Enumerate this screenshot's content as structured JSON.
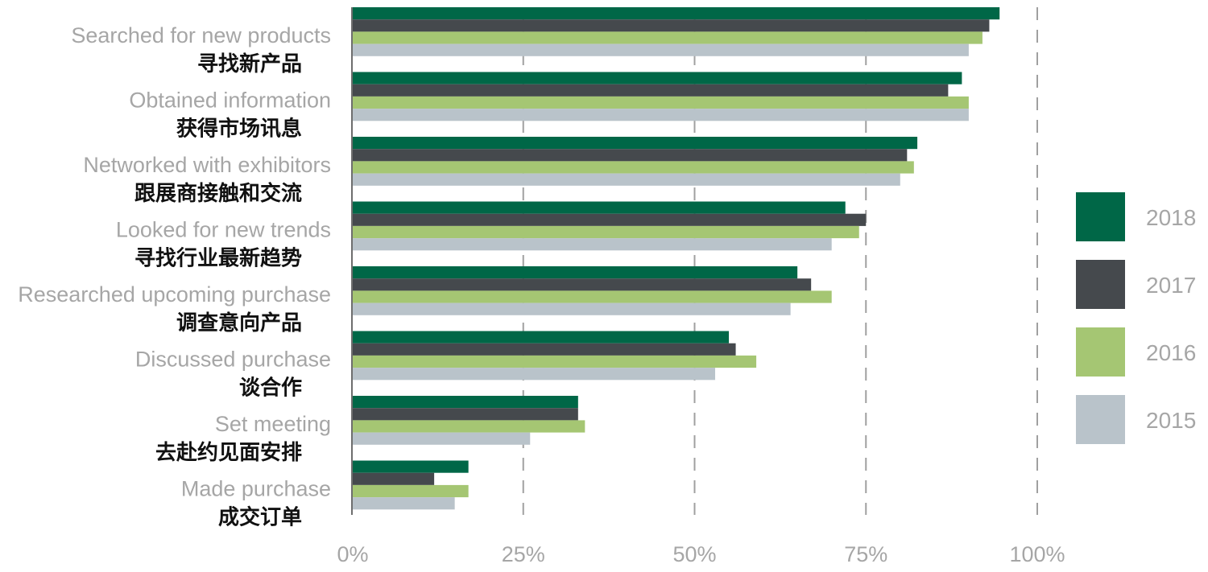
{
  "chart_data": {
    "type": "bar",
    "orientation": "horizontal",
    "categories": [
      {
        "en": "Searched for new products",
        "zh": "寻找新产品"
      },
      {
        "en": "Obtained information",
        "zh": "获得市场讯息"
      },
      {
        "en": "Networked with exhibitors",
        "zh": "跟展商接触和交流"
      },
      {
        "en": "Looked for new trends",
        "zh": "寻找行业最新趋势"
      },
      {
        "en": "Researched upcoming purchase",
        "zh": "调查意向产品"
      },
      {
        "en": "Discussed purchase",
        "zh": "谈合作"
      },
      {
        "en": "Set meeting",
        "zh": "去赴约见面安排"
      },
      {
        "en": "Made purchase",
        "zh": "成交订单"
      }
    ],
    "series": [
      {
        "name": "2018",
        "color": "#006747",
        "values": [
          94.5,
          89,
          82.5,
          72,
          65,
          55,
          33,
          17
        ]
      },
      {
        "name": "2017",
        "color": "#45494d",
        "values": [
          93,
          87,
          81,
          75,
          67,
          56,
          33,
          12
        ]
      },
      {
        "name": "2016",
        "color": "#a5c673",
        "values": [
          92,
          90,
          82,
          74,
          70,
          59,
          34,
          17
        ]
      },
      {
        "name": "2015",
        "color": "#b9c3ca",
        "values": [
          90,
          90,
          80,
          70,
          64,
          53,
          26,
          15
        ]
      }
    ],
    "xlim": [
      0,
      100
    ],
    "ticks": [
      {
        "value": 0,
        "label": "0%"
      },
      {
        "value": 25,
        "label": "25%"
      },
      {
        "value": 50,
        "label": "50%"
      },
      {
        "value": 75,
        "label": "75%"
      },
      {
        "value": 100,
        "label": "100%"
      }
    ],
    "grid": "vertical-dashed",
    "legend_position": "right"
  }
}
